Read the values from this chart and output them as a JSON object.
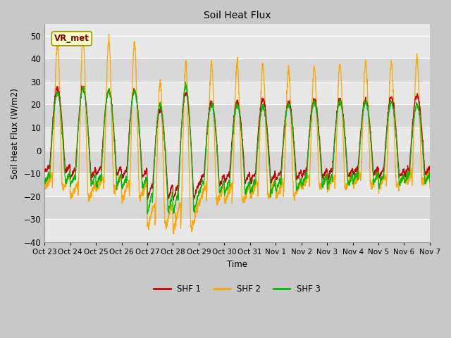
{
  "title": "Soil Heat Flux",
  "ylabel": "Soil Heat Flux (W/m2)",
  "xlabel": "Time",
  "ylim": [
    -40,
    55
  ],
  "yticks": [
    -40,
    -30,
    -20,
    -10,
    0,
    10,
    20,
    30,
    40,
    50
  ],
  "legend_labels": [
    "SHF 1",
    "SHF 2",
    "SHF 3"
  ],
  "shf1_color": "#cc0000",
  "shf2_color": "#ffa500",
  "shf3_color": "#00bb00",
  "text_box_label": "VR_met",
  "background_color": "#c8c8c8",
  "plot_bg_color": "#e8e8e8",
  "grid_color": "#ffffff",
  "band_color_light": "#e8e8e8",
  "band_color_dark": "#d8d8d8",
  "xtick_labels": [
    "Oct 23",
    "Oct 24",
    "Oct 25",
    "Oct 26",
    "Oct 27",
    "Oct 28",
    "Oct 29",
    "Oct 30",
    "Oct 31",
    "Nov 1",
    "Nov 2",
    "Nov 3",
    "Nov 4",
    "Nov 5",
    "Nov 6",
    "Nov 7"
  ],
  "n_days": 15,
  "points_per_day": 144,
  "shf2_peaks": [
    46,
    50,
    48,
    47,
    30,
    38,
    38,
    38,
    37,
    35,
    36,
    38,
    38,
    38,
    40
  ],
  "shf2_valleys": [
    -16,
    -21,
    -17,
    -21,
    -33,
    -34,
    -22,
    -22,
    -20,
    -20,
    -16,
    -16,
    -15,
    -16,
    -14
  ],
  "shf1_peaks": [
    27,
    27,
    26,
    26,
    18,
    25,
    21,
    21,
    22,
    21,
    22,
    22,
    22,
    23,
    24
  ],
  "shf1_valleys": [
    -8,
    -10,
    -9,
    -10,
    -18,
    -18,
    -13,
    -12,
    -12,
    -11,
    -10,
    -10,
    -9,
    -10,
    -9
  ],
  "shf3_peaks": [
    25,
    27,
    26,
    26,
    20,
    28,
    20,
    20,
    19,
    20,
    21,
    21,
    21,
    21,
    20
  ],
  "shf3_valleys": [
    -12,
    -13,
    -13,
    -14,
    -23,
    -23,
    -16,
    -16,
    -16,
    -15,
    -13,
    -13,
    -12,
    -13,
    -12
  ]
}
